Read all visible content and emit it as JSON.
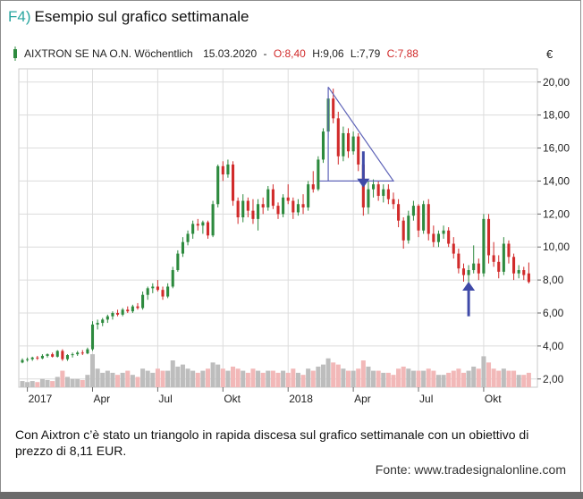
{
  "figure": {
    "number": "F4)",
    "title": "Esempio sul grafico settimanale",
    "caption": "Con Aixtron c’è stato un triangolo in rapida discesa sul grafico settimanale con un obiettivo di prezzo di 8,11 EUR.",
    "source": "Fonte: www.tradesignalonline.com"
  },
  "colors": {
    "up": "#2d8a3e",
    "down": "#d12b2b",
    "volume_up": "#bdbdbd",
    "volume_down": "#f2b8b8",
    "triangle": "#5e63b8",
    "arrow": "#3f4aa8",
    "accent": "#2aa6a0"
  },
  "chart_data": {
    "type": "candlestick",
    "legend": {
      "name": "AIXTRON SE NA O.N. Wöchentlich",
      "date": "15.03.2020",
      "separator": "-",
      "open": "O:8,40",
      "high": "H:9,06",
      "low": "L:7,79",
      "close": "C:7,88"
    },
    "y_unit": "€",
    "y_ticks": [
      "20,00",
      "18,00",
      "16,00",
      "14,00",
      "12,00",
      "10,00",
      "8,00",
      "6,00",
      "4,00",
      "2,00"
    ],
    "ylim": [
      1.5,
      20.8
    ],
    "x_ticks": [
      {
        "label": "2017",
        "t": 1
      },
      {
        "label": "Apr",
        "t": 14
      },
      {
        "label": "Jul",
        "t": 27
      },
      {
        "label": "Okt",
        "t": 40
      },
      {
        "label": "2018",
        "t": 53
      },
      {
        "label": "Apr",
        "t": 66
      },
      {
        "label": "Jul",
        "t": 79
      },
      {
        "label": "Okt",
        "t": 92
      }
    ],
    "x_range": [
      0,
      102
    ],
    "candles": [
      {
        "t": 0,
        "o": 3.0,
        "h": 3.25,
        "l": 2.95,
        "c": 3.15,
        "v": 0.3
      },
      {
        "t": 1,
        "o": 3.15,
        "h": 3.3,
        "l": 3.05,
        "c": 3.2,
        "v": 0.25
      },
      {
        "t": 2,
        "o": 3.2,
        "h": 3.35,
        "l": 3.1,
        "c": 3.3,
        "v": 0.3
      },
      {
        "t": 3,
        "o": 3.3,
        "h": 3.4,
        "l": 3.15,
        "c": 3.25,
        "v": 0.25
      },
      {
        "t": 4,
        "o": 3.25,
        "h": 3.5,
        "l": 3.2,
        "c": 3.4,
        "v": 0.4
      },
      {
        "t": 5,
        "o": 3.4,
        "h": 3.55,
        "l": 3.3,
        "c": 3.5,
        "v": 0.35
      },
      {
        "t": 6,
        "o": 3.5,
        "h": 3.6,
        "l": 3.3,
        "c": 3.35,
        "v": 0.3
      },
      {
        "t": 7,
        "o": 3.35,
        "h": 3.75,
        "l": 3.3,
        "c": 3.7,
        "v": 0.5
      },
      {
        "t": 8,
        "o": 3.7,
        "h": 3.8,
        "l": 3.1,
        "c": 3.2,
        "v": 0.8
      },
      {
        "t": 9,
        "o": 3.2,
        "h": 3.5,
        "l": 3.1,
        "c": 3.45,
        "v": 0.5
      },
      {
        "t": 10,
        "o": 3.45,
        "h": 3.6,
        "l": 3.3,
        "c": 3.5,
        "v": 0.4
      },
      {
        "t": 11,
        "o": 3.5,
        "h": 3.7,
        "l": 3.4,
        "c": 3.6,
        "v": 0.4
      },
      {
        "t": 12,
        "o": 3.6,
        "h": 3.75,
        "l": 3.45,
        "c": 3.55,
        "v": 0.35
      },
      {
        "t": 13,
        "o": 3.55,
        "h": 3.9,
        "l": 3.5,
        "c": 3.8,
        "v": 0.6
      },
      {
        "t": 14,
        "o": 3.8,
        "h": 5.5,
        "l": 3.7,
        "c": 5.3,
        "v": 1.6
      },
      {
        "t": 15,
        "o": 5.3,
        "h": 5.6,
        "l": 5.0,
        "c": 5.4,
        "v": 0.9
      },
      {
        "t": 16,
        "o": 5.4,
        "h": 5.7,
        "l": 5.2,
        "c": 5.6,
        "v": 0.7
      },
      {
        "t": 17,
        "o": 5.6,
        "h": 5.9,
        "l": 5.4,
        "c": 5.8,
        "v": 0.8
      },
      {
        "t": 18,
        "o": 5.8,
        "h": 6.1,
        "l": 5.6,
        "c": 6.0,
        "v": 0.7
      },
      {
        "t": 19,
        "o": 6.0,
        "h": 6.2,
        "l": 5.8,
        "c": 5.9,
        "v": 0.6
      },
      {
        "t": 20,
        "o": 5.9,
        "h": 6.3,
        "l": 5.8,
        "c": 6.2,
        "v": 0.7
      },
      {
        "t": 21,
        "o": 6.2,
        "h": 6.4,
        "l": 6.0,
        "c": 6.1,
        "v": 0.8
      },
      {
        "t": 22,
        "o": 6.1,
        "h": 6.5,
        "l": 6.0,
        "c": 6.4,
        "v": 0.6
      },
      {
        "t": 23,
        "o": 6.4,
        "h": 6.6,
        "l": 6.2,
        "c": 6.3,
        "v": 0.5
      },
      {
        "t": 24,
        "o": 6.3,
        "h": 7.3,
        "l": 6.2,
        "c": 7.1,
        "v": 0.9
      },
      {
        "t": 25,
        "o": 7.1,
        "h": 7.6,
        "l": 6.8,
        "c": 7.5,
        "v": 0.8
      },
      {
        "t": 26,
        "o": 7.5,
        "h": 7.8,
        "l": 7.2,
        "c": 7.6,
        "v": 0.7
      },
      {
        "t": 27,
        "o": 7.6,
        "h": 8.0,
        "l": 7.3,
        "c": 7.4,
        "v": 0.9
      },
      {
        "t": 28,
        "o": 7.4,
        "h": 7.6,
        "l": 6.8,
        "c": 7.0,
        "v": 0.8
      },
      {
        "t": 29,
        "o": 7.0,
        "h": 7.8,
        "l": 6.9,
        "c": 7.6,
        "v": 0.8
      },
      {
        "t": 30,
        "o": 7.6,
        "h": 8.8,
        "l": 7.5,
        "c": 8.6,
        "v": 1.3
      },
      {
        "t": 31,
        "o": 8.6,
        "h": 9.8,
        "l": 8.5,
        "c": 9.6,
        "v": 1.0
      },
      {
        "t": 32,
        "o": 9.6,
        "h": 10.6,
        "l": 9.4,
        "c": 10.3,
        "v": 1.1
      },
      {
        "t": 33,
        "o": 10.3,
        "h": 11.0,
        "l": 10.1,
        "c": 10.8,
        "v": 0.9
      },
      {
        "t": 34,
        "o": 10.8,
        "h": 11.6,
        "l": 10.5,
        "c": 11.4,
        "v": 0.8
      },
      {
        "t": 35,
        "o": 11.4,
        "h": 11.7,
        "l": 11.0,
        "c": 11.3,
        "v": 0.7
      },
      {
        "t": 36,
        "o": 11.3,
        "h": 11.6,
        "l": 10.8,
        "c": 11.5,
        "v": 0.8
      },
      {
        "t": 37,
        "o": 11.5,
        "h": 11.6,
        "l": 10.5,
        "c": 10.7,
        "v": 0.9
      },
      {
        "t": 38,
        "o": 10.7,
        "h": 12.8,
        "l": 10.6,
        "c": 12.6,
        "v": 1.2
      },
      {
        "t": 39,
        "o": 12.6,
        "h": 15.0,
        "l": 12.4,
        "c": 14.9,
        "v": 1.1
      },
      {
        "t": 40,
        "o": 14.9,
        "h": 15.2,
        "l": 14.0,
        "c": 14.4,
        "v": 0.9
      },
      {
        "t": 41,
        "o": 14.4,
        "h": 15.3,
        "l": 14.2,
        "c": 15.0,
        "v": 0.8
      },
      {
        "t": 42,
        "o": 15.0,
        "h": 15.2,
        "l": 12.5,
        "c": 12.8,
        "v": 1.0
      },
      {
        "t": 43,
        "o": 12.8,
        "h": 13.0,
        "l": 11.4,
        "c": 11.8,
        "v": 0.9
      },
      {
        "t": 44,
        "o": 11.8,
        "h": 13.2,
        "l": 11.5,
        "c": 12.8,
        "v": 0.8
      },
      {
        "t": 45,
        "o": 12.8,
        "h": 13.0,
        "l": 11.8,
        "c": 12.2,
        "v": 0.7
      },
      {
        "t": 46,
        "o": 12.2,
        "h": 12.9,
        "l": 11.4,
        "c": 11.7,
        "v": 0.9
      },
      {
        "t": 47,
        "o": 11.7,
        "h": 12.9,
        "l": 11.0,
        "c": 12.6,
        "v": 0.8
      },
      {
        "t": 48,
        "o": 12.6,
        "h": 13.0,
        "l": 12.0,
        "c": 12.4,
        "v": 0.7
      },
      {
        "t": 49,
        "o": 12.4,
        "h": 13.7,
        "l": 12.2,
        "c": 13.5,
        "v": 0.8
      },
      {
        "t": 50,
        "o": 13.5,
        "h": 13.8,
        "l": 12.3,
        "c": 12.5,
        "v": 0.8
      },
      {
        "t": 51,
        "o": 12.5,
        "h": 12.7,
        "l": 11.7,
        "c": 12.0,
        "v": 0.7
      },
      {
        "t": 52,
        "o": 12.0,
        "h": 13.2,
        "l": 11.8,
        "c": 13.0,
        "v": 0.8
      },
      {
        "t": 53,
        "o": 13.0,
        "h": 13.8,
        "l": 12.6,
        "c": 12.8,
        "v": 0.7
      },
      {
        "t": 54,
        "o": 12.8,
        "h": 13.0,
        "l": 11.7,
        "c": 12.1,
        "v": 0.9
      },
      {
        "t": 55,
        "o": 12.1,
        "h": 12.9,
        "l": 11.9,
        "c": 12.6,
        "v": 0.7
      },
      {
        "t": 56,
        "o": 12.6,
        "h": 13.2,
        "l": 12.0,
        "c": 12.4,
        "v": 0.6
      },
      {
        "t": 57,
        "o": 12.4,
        "h": 14.0,
        "l": 12.2,
        "c": 13.8,
        "v": 0.9
      },
      {
        "t": 58,
        "o": 13.8,
        "h": 14.6,
        "l": 13.3,
        "c": 13.5,
        "v": 0.8
      },
      {
        "t": 59,
        "o": 13.5,
        "h": 15.5,
        "l": 13.4,
        "c": 15.3,
        "v": 1.0
      },
      {
        "t": 60,
        "o": 15.3,
        "h": 17.2,
        "l": 15.1,
        "c": 17.0,
        "v": 1.1
      },
      {
        "t": 61,
        "o": 17.0,
        "h": 19.2,
        "l": 16.6,
        "c": 19.0,
        "v": 1.4
      },
      {
        "t": 62,
        "o": 19.0,
        "h": 19.6,
        "l": 17.5,
        "c": 17.8,
        "v": 1.2
      },
      {
        "t": 63,
        "o": 17.8,
        "h": 18.2,
        "l": 15.0,
        "c": 15.5,
        "v": 1.1
      },
      {
        "t": 64,
        "o": 15.5,
        "h": 17.3,
        "l": 15.2,
        "c": 16.9,
        "v": 0.9
      },
      {
        "t": 65,
        "o": 16.9,
        "h": 17.2,
        "l": 15.4,
        "c": 15.8,
        "v": 0.8
      },
      {
        "t": 66,
        "o": 15.8,
        "h": 17.0,
        "l": 15.6,
        "c": 16.7,
        "v": 0.8
      },
      {
        "t": 67,
        "o": 16.7,
        "h": 16.9,
        "l": 14.6,
        "c": 15.0,
        "v": 0.9
      },
      {
        "t": 68,
        "o": 15.0,
        "h": 15.4,
        "l": 11.9,
        "c": 12.4,
        "v": 1.3
      },
      {
        "t": 69,
        "o": 12.4,
        "h": 14.0,
        "l": 12.0,
        "c": 13.5,
        "v": 1.0
      },
      {
        "t": 70,
        "o": 13.5,
        "h": 14.1,
        "l": 13.0,
        "c": 13.8,
        "v": 0.8
      },
      {
        "t": 71,
        "o": 13.8,
        "h": 14.0,
        "l": 12.8,
        "c": 13.1,
        "v": 0.8
      },
      {
        "t": 72,
        "o": 13.1,
        "h": 13.8,
        "l": 12.7,
        "c": 13.5,
        "v": 0.7
      },
      {
        "t": 73,
        "o": 13.5,
        "h": 13.8,
        "l": 12.6,
        "c": 12.9,
        "v": 0.7
      },
      {
        "t": 74,
        "o": 12.9,
        "h": 13.3,
        "l": 12.3,
        "c": 12.6,
        "v": 0.6
      },
      {
        "t": 75,
        "o": 12.6,
        "h": 12.9,
        "l": 11.2,
        "c": 11.6,
        "v": 0.9
      },
      {
        "t": 76,
        "o": 11.6,
        "h": 11.8,
        "l": 9.9,
        "c": 10.4,
        "v": 1.0
      },
      {
        "t": 77,
        "o": 10.4,
        "h": 12.2,
        "l": 10.2,
        "c": 11.9,
        "v": 0.9
      },
      {
        "t": 78,
        "o": 11.9,
        "h": 12.8,
        "l": 11.6,
        "c": 12.5,
        "v": 0.8
      },
      {
        "t": 79,
        "o": 12.5,
        "h": 12.6,
        "l": 10.6,
        "c": 11.0,
        "v": 0.8
      },
      {
        "t": 80,
        "o": 11.0,
        "h": 12.8,
        "l": 10.8,
        "c": 12.6,
        "v": 0.8
      },
      {
        "t": 81,
        "o": 12.6,
        "h": 12.9,
        "l": 10.4,
        "c": 10.8,
        "v": 0.9
      },
      {
        "t": 82,
        "o": 10.8,
        "h": 11.3,
        "l": 10.0,
        "c": 10.3,
        "v": 0.8
      },
      {
        "t": 83,
        "o": 10.3,
        "h": 11.0,
        "l": 10.0,
        "c": 10.8,
        "v": 0.6
      },
      {
        "t": 84,
        "o": 10.8,
        "h": 11.3,
        "l": 10.5,
        "c": 11.0,
        "v": 0.6
      },
      {
        "t": 85,
        "o": 11.0,
        "h": 11.2,
        "l": 10.0,
        "c": 10.2,
        "v": 0.7
      },
      {
        "t": 86,
        "o": 10.2,
        "h": 10.6,
        "l": 9.3,
        "c": 9.6,
        "v": 0.8
      },
      {
        "t": 87,
        "o": 9.6,
        "h": 9.9,
        "l": 8.4,
        "c": 8.7,
        "v": 0.9
      },
      {
        "t": 88,
        "o": 8.7,
        "h": 9.0,
        "l": 7.9,
        "c": 8.3,
        "v": 0.7
      },
      {
        "t": 89,
        "o": 8.3,
        "h": 8.9,
        "l": 7.6,
        "c": 8.6,
        "v": 0.8
      },
      {
        "t": 90,
        "o": 8.6,
        "h": 10.1,
        "l": 8.4,
        "c": 9.0,
        "v": 1.0
      },
      {
        "t": 91,
        "o": 9.0,
        "h": 9.3,
        "l": 8.0,
        "c": 8.4,
        "v": 0.9
      },
      {
        "t": 92,
        "o": 8.4,
        "h": 12.0,
        "l": 8.2,
        "c": 11.7,
        "v": 1.5
      },
      {
        "t": 93,
        "o": 11.7,
        "h": 12.0,
        "l": 9.0,
        "c": 9.5,
        "v": 1.2
      },
      {
        "t": 94,
        "o": 9.5,
        "h": 10.3,
        "l": 8.8,
        "c": 9.1,
        "v": 0.9
      },
      {
        "t": 95,
        "o": 9.1,
        "h": 9.5,
        "l": 8.1,
        "c": 8.5,
        "v": 0.8
      },
      {
        "t": 96,
        "o": 8.5,
        "h": 10.6,
        "l": 8.3,
        "c": 10.2,
        "v": 0.9
      },
      {
        "t": 97,
        "o": 10.2,
        "h": 10.4,
        "l": 9.0,
        "c": 9.4,
        "v": 0.8
      },
      {
        "t": 98,
        "o": 9.4,
        "h": 9.6,
        "l": 8.0,
        "c": 8.4,
        "v": 0.8
      },
      {
        "t": 99,
        "o": 8.4,
        "h": 8.9,
        "l": 8.1,
        "c": 8.6,
        "v": 0.6
      },
      {
        "t": 100,
        "o": 8.6,
        "h": 8.8,
        "l": 8.0,
        "c": 8.3,
        "v": 0.6
      },
      {
        "t": 101,
        "o": 8.4,
        "h": 9.06,
        "l": 7.79,
        "c": 7.88,
        "v": 0.7
      }
    ],
    "volume_max": 2.0,
    "annotations": {
      "triangle": [
        {
          "t": 61,
          "price": 19.7
        },
        {
          "t": 61,
          "price": 14.0
        },
        {
          "t": 74,
          "price": 14.0
        }
      ],
      "arrows": [
        {
          "t": 68,
          "price_from": 15.8,
          "price_to": 13.6,
          "direction": "down"
        },
        {
          "t": 89,
          "price_from": 5.8,
          "price_to": 7.9,
          "direction": "up"
        }
      ]
    }
  }
}
